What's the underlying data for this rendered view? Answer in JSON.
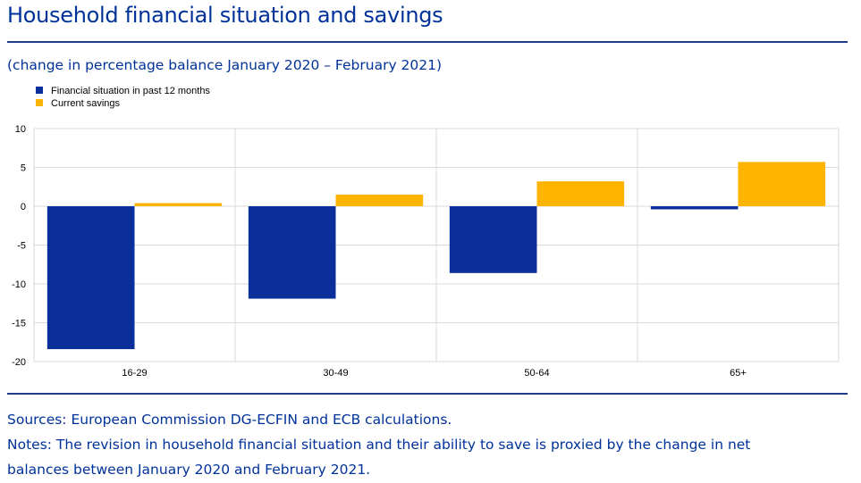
{
  "title": "Household financial situation and savings",
  "subtitle": "(change in percentage balance January 2020 – February 2021)",
  "chart_data": {
    "type": "bar",
    "categories": [
      "16-29",
      "30-49",
      "50-64",
      "65+"
    ],
    "series": [
      {
        "name": "Financial situation in past 12 months",
        "color": "#0a2e9a",
        "values": [
          -18.4,
          -11.9,
          -8.6,
          -0.4
        ]
      },
      {
        "name": "Current savings",
        "color": "#ffb400",
        "values": [
          0.4,
          1.5,
          3.2,
          5.7
        ]
      }
    ],
    "ylim": [
      -20,
      10
    ],
    "yticks": [
      10,
      5,
      0,
      -5,
      -10,
      -15,
      -20
    ],
    "grid": true,
    "legend": "top-left"
  },
  "footer": {
    "sources": "Sources: European Commission DG-ECFIN and ECB calculations.",
    "notes_line1": "Notes: The revision in household financial situation and their ability to save is proxied by the change in net",
    "notes_line2": "balances between January 2020 and February 2021."
  }
}
